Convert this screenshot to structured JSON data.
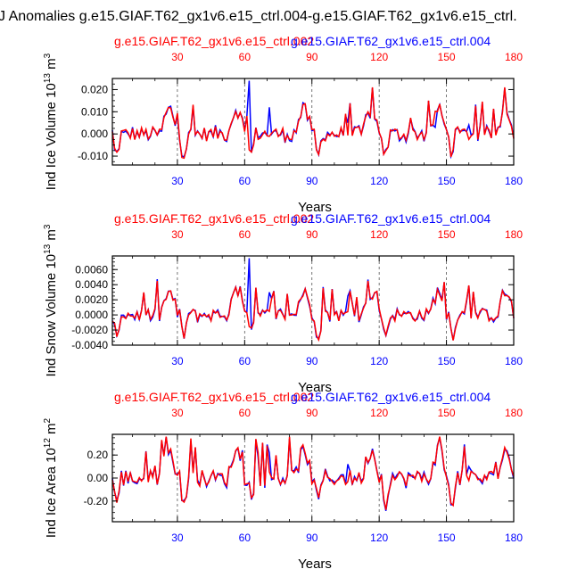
{
  "page_title": "J Anomalies g.e15.GIAF.T62_gx1v6.e15_ctrl.004-g.e15.GIAF.T62_gx1v6.e15_ctrl.",
  "colors": {
    "blue": "#0000ff",
    "red": "#ff0000",
    "axis": "#000000"
  },
  "chart_data": [
    {
      "type": "line",
      "id": "ice-volume",
      "ylabel": "Ind Ice Volume 10",
      "ylabel_exp": "13",
      "ylabel_unit": " m",
      "ylabel_unit_exp": "3",
      "xlabel": "Years",
      "title_red": "g.e15.GIAF.T62_gx1v6.e15_ctrl.002",
      "title_blue": "g.e15.GIAF.T62_gx1v6.e15_ctrl.004",
      "xlim": [
        1,
        180
      ],
      "ylim": [
        -0.014,
        0.025
      ],
      "yticks": [
        -0.01,
        0.0,
        0.01,
        0.02
      ],
      "yticklabels": [
        "-0.010",
        "0.000",
        "0.010",
        "0.020"
      ],
      "xticks": [
        30,
        60,
        90,
        120,
        150,
        180
      ],
      "xticklabels": [
        "30",
        "60",
        "90",
        "120",
        "150",
        "180"
      ],
      "series": [
        {
          "name": "g.e15.GIAF.T62_gx1v6.e15_ctrl.004",
          "color": "#0000ff"
        },
        {
          "name": "g.e15.GIAF.T62_gx1v6.e15_ctrl.002",
          "color": "#ff0000"
        }
      ],
      "blue_extra": [
        [
          62,
          0.024
        ],
        [
          71,
          0.012
        ],
        [
          106,
          0.005
        ],
        [
          145,
          0.003
        ],
        [
          160,
          0.004
        ]
      ]
    },
    {
      "type": "line",
      "id": "snow-volume",
      "ylabel": "Ind Snow Volume 10",
      "ylabel_exp": "13",
      "ylabel_unit": " m",
      "ylabel_unit_exp": "3",
      "xlabel": "Years",
      "title_red": "g.e15.GIAF.T62_gx1v6.e15_ctrl.002",
      "title_blue": "g.e15.GIAF.T62_gx1v6.e15_ctrl.004",
      "xlim": [
        1,
        180
      ],
      "ylim": [
        -0.004,
        0.0078
      ],
      "yticks": [
        -0.004,
        -0.002,
        0.0,
        0.002,
        0.004,
        0.006
      ],
      "yticklabels": [
        "-0.0040",
        "-0.0020",
        "0.0000",
        "0.0020",
        "0.0040",
        "0.0060"
      ],
      "xticks": [
        30,
        60,
        90,
        120,
        150,
        180
      ],
      "xticklabels": [
        "30",
        "60",
        "90",
        "120",
        "150",
        "180"
      ],
      "series": [
        {
          "name": "g.e15.GIAF.T62_gx1v6.e15_ctrl.004",
          "color": "#0000ff"
        },
        {
          "name": "g.e15.GIAF.T62_gx1v6.e15_ctrl.002",
          "color": "#ff0000"
        }
      ],
      "blue_extra": [
        [
          62,
          0.0075
        ],
        [
          71,
          0.003
        ],
        [
          106,
          0.0025
        ]
      ]
    },
    {
      "type": "line",
      "id": "ice-area",
      "ylabel": "Ind Ice Area 10",
      "ylabel_exp": "12",
      "ylabel_unit": " m",
      "ylabel_unit_exp": "2",
      "xlabel": "Years",
      "title_red": "g.e15.GIAF.T62_gx1v6.e15_ctrl.002",
      "title_blue": "g.e15.GIAF.T62_gx1v6.e15_ctrl.004",
      "xlim": [
        1,
        180
      ],
      "ylim": [
        -0.38,
        0.38
      ],
      "yticks": [
        -0.2,
        0.0,
        0.2
      ],
      "yticklabels": [
        "-0.20",
        "0.00",
        "0.20"
      ],
      "xticks": [
        30,
        60,
        90,
        120,
        150,
        180
      ],
      "xticklabels": [
        "30",
        "60",
        "90",
        "120",
        "150",
        "180"
      ],
      "series": [
        {
          "name": "g.e15.GIAF.T62_gx1v6.e15_ctrl.004",
          "color": "#0000ff"
        },
        {
          "name": "g.e15.GIAF.T62_gx1v6.e15_ctrl.002",
          "color": "#ff0000"
        }
      ],
      "blue_extra": [
        [
          66,
          0.18
        ],
        [
          71,
          0.22
        ],
        [
          106,
          0.12
        ],
        [
          160,
          0.1
        ]
      ]
    }
  ]
}
